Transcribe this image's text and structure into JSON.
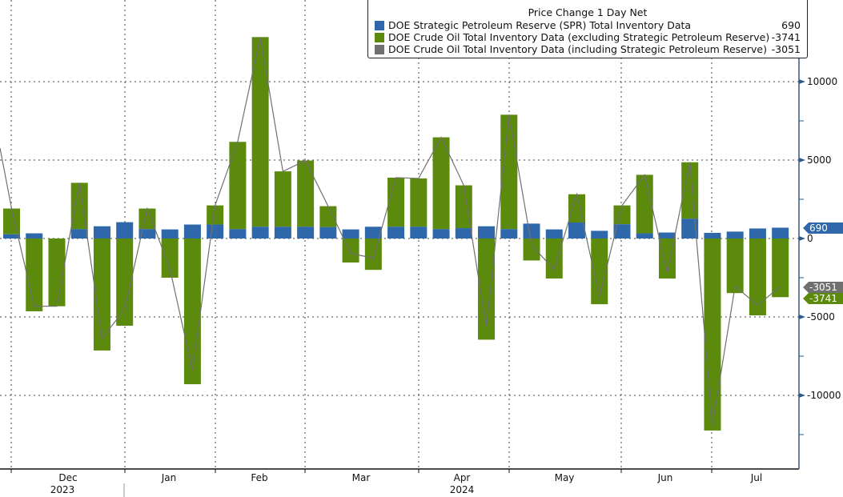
{
  "chart_data": {
    "type": "bar",
    "stacked": true,
    "legend_title": "Price Change 1 Day Net",
    "legend_placement": "top-right",
    "grid": true,
    "y_axis_side": "right",
    "ylim": [
      -14500,
      15000
    ],
    "y_ticks": [
      10000,
      5000,
      0,
      -5000,
      -10000
    ],
    "y_tick_labels": [
      "10000",
      "5000",
      "0",
      "-5000",
      "-10000"
    ],
    "x_month_labels": [
      "Dec",
      "Jan",
      "Feb",
      "Mar",
      "Apr",
      "May",
      "Jun",
      "Jul"
    ],
    "x_year_labels": [
      "2023",
      "2024"
    ],
    "series": [
      {
        "name": "DOE Strategic Petroleum Reserve (SPR) Total Inventory Data",
        "last": "690",
        "color": "#2e67aa",
        "kind": "bar",
        "values": [
          270,
          330,
          0,
          600,
          780,
          1040,
          600,
          580,
          890,
          890,
          600,
          750,
          750,
          750,
          730,
          580,
          750,
          750,
          750,
          600,
          660,
          780,
          600,
          950,
          580,
          1020,
          490,
          910,
          330,
          380,
          1260,
          360,
          440,
          640,
          690
        ]
      },
      {
        "name": "DOE Crude Oil Total Inventory Data (excluding Strategic Petroleum Reserve)",
        "last": "-3741",
        "color": "#5b8a0c",
        "kind": "bar",
        "values": [
          1640,
          -4640,
          -4320,
          2950,
          -7140,
          -5560,
          1310,
          -2500,
          -9290,
          1220,
          5560,
          12090,
          3530,
          4220,
          1330,
          -1530,
          -2000,
          3130,
          3080,
          5850,
          2730,
          -6450,
          7290,
          -1400,
          -2550,
          1800,
          -4190,
          1200,
          3730,
          -2550,
          3600,
          -12240,
          -3480,
          -4900,
          -3741
        ]
      },
      {
        "name": "DOE Crude Oil Total Inventory Data (including Strategic Petroleum Reserve)",
        "last": "-3051",
        "color": "#707070",
        "kind": "line",
        "values": [
          1910,
          -4310,
          -4320,
          3550,
          -6360,
          -4520,
          1910,
          -1920,
          -8400,
          2110,
          6160,
          12840,
          4280,
          4970,
          2060,
          -950,
          -1250,
          3880,
          3830,
          6450,
          3390,
          -5670,
          7890,
          -450,
          -1970,
          2820,
          -3700,
          2110,
          4060,
          -2170,
          4860,
          -11880,
          -3040,
          -4260,
          -3051
        ]
      }
    ]
  }
}
